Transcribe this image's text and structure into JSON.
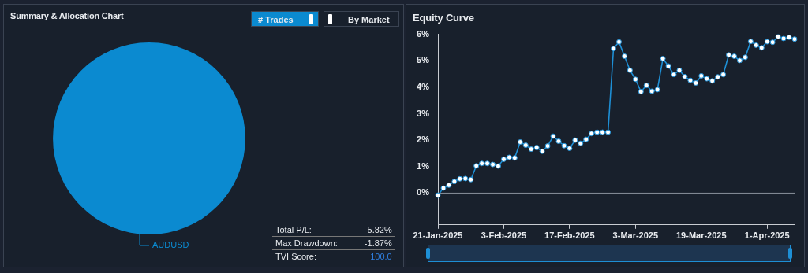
{
  "chart_data": [
    {
      "type": "pie",
      "title": "Summary & Allocation Chart",
      "categories": [
        "AUDUSD"
      ],
      "values": [
        100
      ],
      "colors": [
        "#0b8ad0"
      ],
      "annotations": [
        "# Trades",
        "By Market",
        "Total P/L:",
        "5.82%",
        "Max Drawdown:",
        "-1.87%",
        "TVI Score:",
        "100.0"
      ]
    },
    {
      "type": "line",
      "title": "Equity Curve",
      "categories": [
        "21-Jan-2025",
        null,
        null,
        null,
        null,
        null,
        null,
        null,
        null,
        null,
        null,
        null,
        "3-Feb-2025",
        null,
        null,
        null,
        null,
        null,
        null,
        null,
        null,
        null,
        null,
        null,
        "17-Feb-2025",
        null,
        null,
        null,
        null,
        null,
        null,
        null,
        null,
        null,
        null,
        null,
        "3-Mar-2025",
        null,
        null,
        null,
        null,
        null,
        null,
        null,
        null,
        null,
        null,
        null,
        "19-Mar-2025",
        null,
        null,
        null,
        null,
        null,
        null,
        null,
        null,
        null,
        null,
        null,
        "1-Apr-2025",
        null,
        null,
        null,
        null,
        null
      ],
      "values": [
        -0.08,
        0.19,
        0.3,
        0.44,
        0.54,
        0.55,
        0.51,
        1.03,
        1.12,
        1.12,
        1.08,
        1.02,
        1.28,
        1.35,
        1.33,
        1.93,
        1.81,
        1.66,
        1.72,
        1.58,
        1.78,
        2.15,
        1.96,
        1.79,
        1.69,
        2.0,
        1.88,
        2.03,
        2.25,
        2.3,
        2.3,
        2.3,
        5.46,
        5.71,
        5.17,
        4.64,
        4.3,
        3.83,
        4.07,
        3.85,
        3.91,
        5.08,
        4.8,
        4.48,
        4.64,
        4.4,
        4.26,
        4.16,
        4.43,
        4.32,
        4.24,
        4.39,
        4.48,
        5.22,
        5.17,
        5.01,
        5.13,
        5.73,
        5.59,
        5.49,
        5.72,
        5.7,
        5.91,
        5.84,
        5.89,
        5.82
      ],
      "color": "#1e8fd5",
      "marker": "circle",
      "ylim": [
        -1.2,
        6
      ],
      "yticks": [
        {
          "value": 0,
          "label": "0%"
        },
        {
          "value": 1,
          "label": "1%"
        },
        {
          "value": 2,
          "label": "2%"
        },
        {
          "value": 3,
          "label": "3%"
        },
        {
          "value": 4,
          "label": "4%"
        },
        {
          "value": 5,
          "label": "5%"
        },
        {
          "value": 6,
          "label": "6%"
        }
      ],
      "ref_lines": [
        {
          "axis": "y",
          "value": 0,
          "color": "#8a919c"
        }
      ]
    }
  ]
}
